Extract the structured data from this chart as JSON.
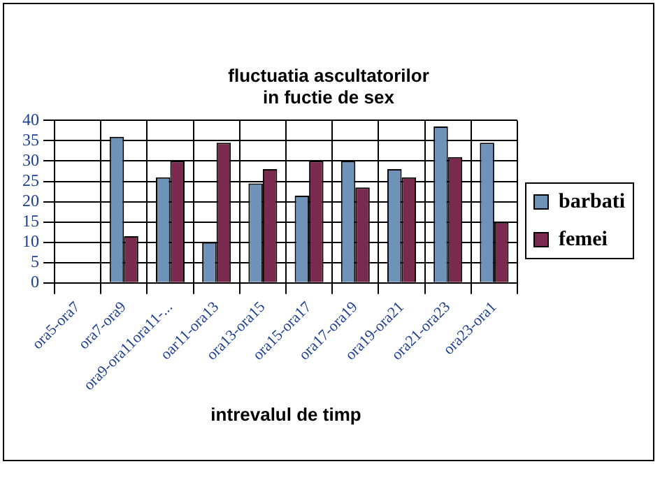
{
  "chart_data": {
    "type": "bar",
    "title": "fluctuatia ascultatorilor\nin fuctie de sex",
    "xlabel": "intrevalul de timp",
    "categories": [
      "ora5-ora7",
      "ora7-ora9",
      "ora9-ora11ora11-...",
      "oar11-ora13",
      "ora13-ora15",
      "ora15-ora17",
      "ora17-ora19",
      "ora19-ora21",
      "ora21-ora23",
      "ora23-ora1"
    ],
    "series": [
      {
        "name": "barbati",
        "color": "#6f93b8",
        "values": [
          null,
          36,
          26,
          10,
          24.5,
          21.5,
          30,
          28,
          38.5,
          34.5
        ]
      },
      {
        "name": "femei",
        "color": "#7a2a4e",
        "values": [
          null,
          11.5,
          30,
          34.5,
          28,
          30,
          23.5,
          26,
          31,
          15
        ]
      }
    ],
    "ylim": [
      0,
      40
    ],
    "yticks": [
      0,
      5,
      10,
      15,
      20,
      25,
      30,
      35,
      40
    ],
    "grid": true,
    "legend": "right"
  }
}
